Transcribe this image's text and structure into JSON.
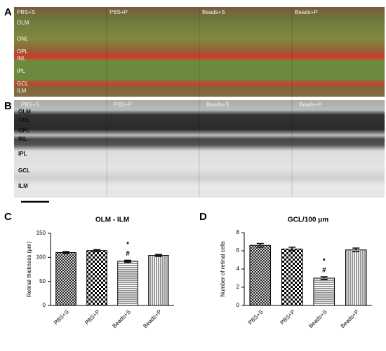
{
  "panel_a": {
    "label": "A",
    "columns": [
      "PBS+S",
      "PBS+P",
      "Beads+S",
      "Beads+P"
    ],
    "layers": [
      "OLM",
      "ONL",
      "OPL",
      "INL",
      "IPL",
      "GCL",
      "ILM"
    ]
  },
  "panel_b": {
    "label": "B",
    "columns": [
      "PBS+S",
      "PBS+P",
      "Beads+S",
      "Beads+P"
    ],
    "layers": [
      "OLM",
      "ONL",
      "OPL",
      "INL",
      "IPL",
      "GCL",
      "ILM"
    ]
  },
  "chart_data": [
    {
      "type": "bar",
      "panel": "C",
      "title": "OLM - ILM",
      "ylabel": "Retinal thickness (μm)",
      "categories": [
        "PBS+S",
        "PBS+P",
        "Beads+S",
        "Beads+P"
      ],
      "values": [
        110,
        114,
        92,
        104
      ],
      "errors": [
        2,
        2,
        2,
        2
      ],
      "patterns": [
        "crosshatch",
        "checker",
        "hlines",
        "vlines"
      ],
      "color": "#000000",
      "ylim": [
        0,
        150
      ],
      "yticks": [
        0,
        50,
        100,
        150
      ],
      "annotations": [
        {
          "text": "*",
          "category": "Beads+S"
        },
        {
          "text": "#",
          "category": "Beads+S"
        }
      ]
    },
    {
      "type": "bar",
      "panel": "D",
      "title": "GCL/100 μm",
      "ylabel": "Number of retinal cells",
      "categories": [
        "PBS+S",
        "PBS+P",
        "Beads+S",
        "Beads+P"
      ],
      "values": [
        6.6,
        6.2,
        3.0,
        6.1
      ],
      "errors": [
        0.2,
        0.2,
        0.15,
        0.2
      ],
      "patterns": [
        "crosshatch",
        "checker",
        "hlines",
        "vlines"
      ],
      "color": "#000000",
      "ylim": [
        0,
        8
      ],
      "yticks": [
        0,
        2,
        4,
        6,
        8
      ],
      "annotations": [
        {
          "text": "*",
          "category": "Beads+S"
        },
        {
          "text": "#",
          "category": "Beads+S"
        }
      ]
    }
  ]
}
